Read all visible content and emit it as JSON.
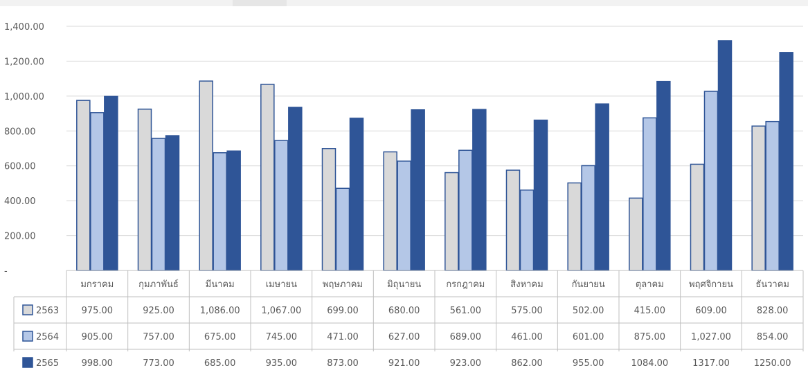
{
  "chart_data": {
    "type": "bar",
    "categories": [
      "มกราคม",
      "กุมภาพันธ์",
      "มีนาคม",
      "เมษายน",
      "พฤษภาคม",
      "มิถุนายน",
      "กรกฎาคม",
      "สิงหาคม",
      "กันยายน",
      "ตุลาคม",
      "พฤศจิกายน",
      "ธันวาคม"
    ],
    "series": [
      {
        "name": "2563",
        "color": "#d9d9d9",
        "values": [
          975,
          925,
          1086,
          1067,
          699,
          680,
          561,
          575,
          502,
          415,
          609,
          828
        ],
        "labels": [
          "975.00",
          "925.00",
          "1,086.00",
          "1,067.00",
          "699.00",
          "680.00",
          "561.00",
          "575.00",
          "502.00",
          "415.00",
          "609.00",
          "828.00"
        ]
      },
      {
        "name": "2564",
        "color": "#b4c7e7",
        "values": [
          905,
          757,
          675,
          745,
          471,
          627,
          689,
          461,
          601,
          875,
          1027,
          854
        ],
        "labels": [
          "905.00",
          "757.00",
          "675.00",
          "745.00",
          "471.00",
          "627.00",
          "689.00",
          "461.00",
          "601.00",
          "875.00",
          "1,027.00",
          "854.00"
        ]
      },
      {
        "name": "2565",
        "color": "#2f5597",
        "values": [
          998,
          773,
          685,
          935,
          873,
          921,
          923,
          862,
          955,
          1084,
          1317,
          1250
        ],
        "labels": [
          "998.00",
          "773.00",
          "685.00",
          "935.00",
          "873.00",
          "921.00",
          "923.00",
          "862.00",
          "955.00",
          "1084.00",
          "1317.00",
          "1250.00"
        ]
      }
    ],
    "ylim": [
      0,
      1400
    ],
    "yticks": [
      0,
      200,
      400,
      600,
      800,
      1000,
      1200,
      1400
    ],
    "ytick_labels": [
      "-",
      "200.00",
      "400.00",
      "600.00",
      "800.00",
      "1,000.00",
      "1,200.00",
      "1,400.00"
    ],
    "grid": true,
    "legend": "data-table"
  }
}
